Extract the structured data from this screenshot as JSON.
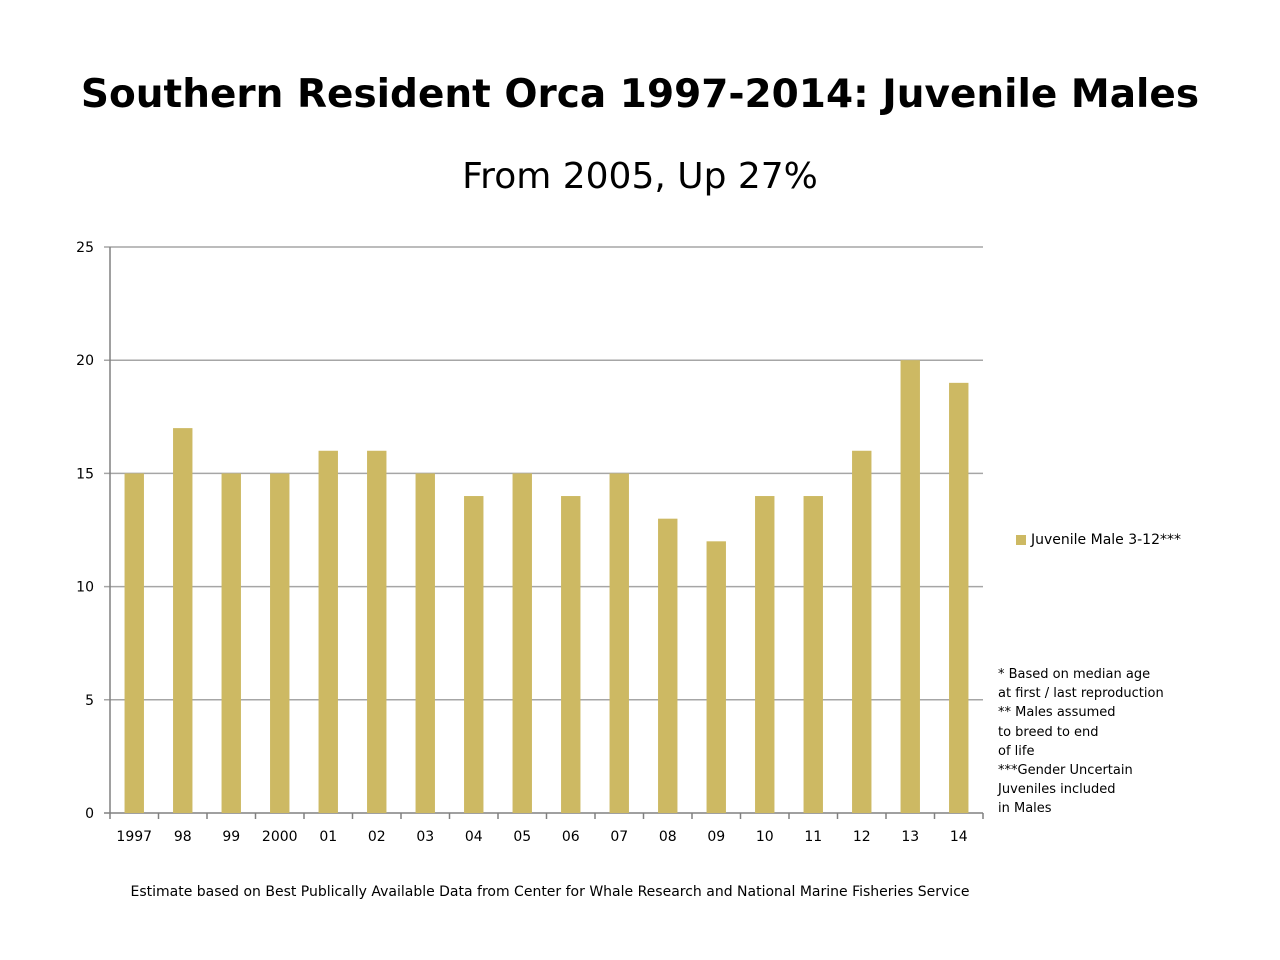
{
  "title": "Southern Resident Orca 1997-2014:  Juvenile Males",
  "subtitle": "From 2005, Up 27%",
  "footer": "Estimate based on Best Publically Available Data from Center for Whale Research and National Marine Fisheries Service",
  "notes": [
    "* Based on median age",
    "at first / last reproduction",
    "** Males assumed",
    "to breed to end",
    "of life",
    "***Gender Uncertain",
    "Juveniles included",
    "in Males"
  ],
  "colors": {
    "bar": "#cdb963",
    "grid": "#a6a6a6",
    "axis": "#808080"
  },
  "chart_data": {
    "type": "bar",
    "title": "Southern Resident Orca 1997-2014:  Juvenile Males",
    "subtitle": "From 2005, Up 27%",
    "categories": [
      "1997",
      "98",
      "99",
      "2000",
      "01",
      "02",
      "03",
      "04",
      "05",
      "06",
      "07",
      "08",
      "09",
      "10",
      "11",
      "12",
      "13",
      "14"
    ],
    "series": [
      {
        "name": "Juvenile Male 3-12***",
        "values": [
          15,
          17,
          15,
          15,
          16,
          16,
          15,
          14,
          15,
          14,
          15,
          13,
          12,
          14,
          14,
          16,
          20,
          19
        ]
      }
    ],
    "ylim": [
      0,
      25
    ],
    "yticks": [
      0,
      5,
      10,
      15,
      20,
      25
    ],
    "grid": true,
    "legend": "right"
  }
}
